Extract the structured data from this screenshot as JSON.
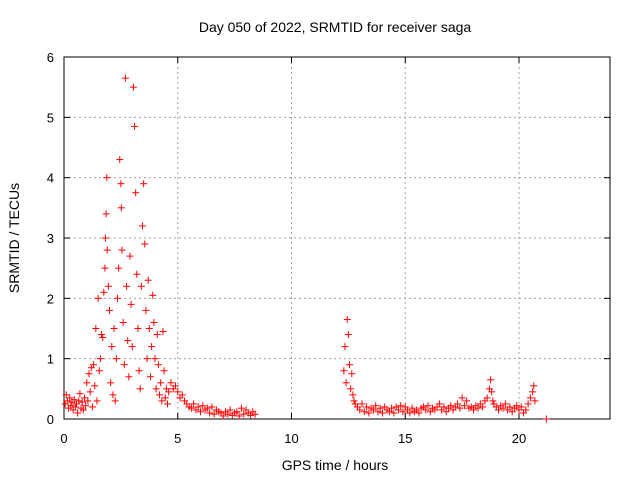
{
  "chart_data": {
    "type": "scatter",
    "title": "Day 050 of 2022, SRMTID for receiver saga",
    "xlabel": "GPS time / hours",
    "ylabel": "SRMTID / TECUs",
    "xlim": [
      0,
      24
    ],
    "ylim": [
      0,
      6
    ],
    "xticks": [
      0,
      5,
      10,
      15,
      20
    ],
    "yticks": [
      0,
      1,
      2,
      3,
      4,
      5,
      6
    ],
    "grid": true,
    "marker": "+",
    "color": "#ff0000",
    "series": [
      {
        "name": "SRMTID",
        "points": [
          [
            0.05,
            0.25
          ],
          [
            0.1,
            0.4
          ],
          [
            0.15,
            0.3
          ],
          [
            0.2,
            0.18
          ],
          [
            0.25,
            0.35
          ],
          [
            0.3,
            0.22
          ],
          [
            0.35,
            0.28
          ],
          [
            0.4,
            0.15
          ],
          [
            0.45,
            0.32
          ],
          [
            0.5,
            0.2
          ],
          [
            0.55,
            0.25
          ],
          [
            0.6,
            0.1
          ],
          [
            0.65,
            0.3
          ],
          [
            0.7,
            0.42
          ],
          [
            0.75,
            0.18
          ],
          [
            0.8,
            0.28
          ],
          [
            0.85,
            0.15
          ],
          [
            0.9,
            0.35
          ],
          [
            0.95,
            0.22
          ],
          [
            1.0,
            0.6
          ],
          [
            1.05,
            0.3
          ],
          [
            1.1,
            0.75
          ],
          [
            1.15,
            0.45
          ],
          [
            1.2,
            0.85
          ],
          [
            1.25,
            0.2
          ],
          [
            1.3,
            0.9
          ],
          [
            1.35,
            0.55
          ],
          [
            1.4,
            1.5
          ],
          [
            1.45,
            0.3
          ],
          [
            1.5,
            2.0
          ],
          [
            1.55,
            0.8
          ],
          [
            1.6,
            1.0
          ],
          [
            1.65,
            1.4
          ],
          [
            1.7,
            1.35
          ],
          [
            1.75,
            2.1
          ],
          [
            1.8,
            2.5
          ],
          [
            1.82,
            3.0
          ],
          [
            1.85,
            3.4
          ],
          [
            1.88,
            4.0
          ],
          [
            1.9,
            2.8
          ],
          [
            1.95,
            2.2
          ],
          [
            2.0,
            1.8
          ],
          [
            2.05,
            0.6
          ],
          [
            2.1,
            1.2
          ],
          [
            2.15,
            0.4
          ],
          [
            2.2,
            1.5
          ],
          [
            2.25,
            0.3
          ],
          [
            2.3,
            1.0
          ],
          [
            2.35,
            2.0
          ],
          [
            2.4,
            2.5
          ],
          [
            2.45,
            4.3
          ],
          [
            2.5,
            3.9
          ],
          [
            2.52,
            3.5
          ],
          [
            2.55,
            2.8
          ],
          [
            2.6,
            1.6
          ],
          [
            2.65,
            0.9
          ],
          [
            2.7,
            5.65
          ],
          [
            2.75,
            2.2
          ],
          [
            2.8,
            1.3
          ],
          [
            2.85,
            0.7
          ],
          [
            2.9,
            2.7
          ],
          [
            2.95,
            1.9
          ],
          [
            3.0,
            1.2
          ],
          [
            3.05,
            5.5
          ],
          [
            3.1,
            4.85
          ],
          [
            3.15,
            3.75
          ],
          [
            3.2,
            2.4
          ],
          [
            3.25,
            1.5
          ],
          [
            3.3,
            0.8
          ],
          [
            3.35,
            0.5
          ],
          [
            3.4,
            2.2
          ],
          [
            3.45,
            3.2
          ],
          [
            3.5,
            3.9
          ],
          [
            3.55,
            2.9
          ],
          [
            3.6,
            1.8
          ],
          [
            3.65,
            1.0
          ],
          [
            3.7,
            2.3
          ],
          [
            3.75,
            1.5
          ],
          [
            3.8,
            0.7
          ],
          [
            3.85,
            1.2
          ],
          [
            3.9,
            2.05
          ],
          [
            3.95,
            1.6
          ],
          [
            4.0,
            1.0
          ],
          [
            4.05,
            0.5
          ],
          [
            4.1,
            1.4
          ],
          [
            4.15,
            0.9
          ],
          [
            4.2,
            0.4
          ],
          [
            4.25,
            0.6
          ],
          [
            4.3,
            0.3
          ],
          [
            4.35,
            1.45
          ],
          [
            4.4,
            0.8
          ],
          [
            4.45,
            0.35
          ],
          [
            4.5,
            0.5
          ],
          [
            4.55,
            0.25
          ],
          [
            4.6,
            0.45
          ],
          [
            4.7,
            0.6
          ],
          [
            4.8,
            0.5
          ],
          [
            4.9,
            0.55
          ],
          [
            5.0,
            0.45
          ],
          [
            5.1,
            0.35
          ],
          [
            5.2,
            0.4
          ],
          [
            5.3,
            0.3
          ],
          [
            5.4,
            0.25
          ],
          [
            5.5,
            0.2
          ],
          [
            5.6,
            0.18
          ],
          [
            5.7,
            0.25
          ],
          [
            5.8,
            0.15
          ],
          [
            5.9,
            0.2
          ],
          [
            6.0,
            0.12
          ],
          [
            6.1,
            0.22
          ],
          [
            6.2,
            0.15
          ],
          [
            6.3,
            0.18
          ],
          [
            6.4,
            0.1
          ],
          [
            6.5,
            0.2
          ],
          [
            6.6,
            0.08
          ],
          [
            6.7,
            0.15
          ],
          [
            6.8,
            0.12
          ],
          [
            6.9,
            0.1
          ],
          [
            7.0,
            0.05
          ],
          [
            7.1,
            0.12
          ],
          [
            7.2,
            0.08
          ],
          [
            7.3,
            0.15
          ],
          [
            7.4,
            0.06
          ],
          [
            7.5,
            0.1
          ],
          [
            7.6,
            0.12
          ],
          [
            7.7,
            0.05
          ],
          [
            7.8,
            0.18
          ],
          [
            7.9,
            0.08
          ],
          [
            8.0,
            0.15
          ],
          [
            8.1,
            0.1
          ],
          [
            8.2,
            0.06
          ],
          [
            8.3,
            0.12
          ],
          [
            8.4,
            0.08
          ],
          [
            12.3,
            0.8
          ],
          [
            12.35,
            1.2
          ],
          [
            12.4,
            0.6
          ],
          [
            12.45,
            1.65
          ],
          [
            12.5,
            1.4
          ],
          [
            12.55,
            0.9
          ],
          [
            12.6,
            0.5
          ],
          [
            12.65,
            0.75
          ],
          [
            12.7,
            0.4
          ],
          [
            12.75,
            0.3
          ],
          [
            12.8,
            0.25
          ],
          [
            12.9,
            0.2
          ],
          [
            13.0,
            0.15
          ],
          [
            13.1,
            0.25
          ],
          [
            13.2,
            0.12
          ],
          [
            13.3,
            0.2
          ],
          [
            13.4,
            0.1
          ],
          [
            13.5,
            0.18
          ],
          [
            13.6,
            0.15
          ],
          [
            13.7,
            0.22
          ],
          [
            13.8,
            0.12
          ],
          [
            13.9,
            0.18
          ],
          [
            14.0,
            0.1
          ],
          [
            14.1,
            0.2
          ],
          [
            14.2,
            0.15
          ],
          [
            14.3,
            0.12
          ],
          [
            14.4,
            0.18
          ],
          [
            14.5,
            0.1
          ],
          [
            14.6,
            0.2
          ],
          [
            14.7,
            0.15
          ],
          [
            14.8,
            0.22
          ],
          [
            14.9,
            0.12
          ],
          [
            15.0,
            0.2
          ],
          [
            15.1,
            0.15
          ],
          [
            15.2,
            0.1
          ],
          [
            15.3,
            0.18
          ],
          [
            15.4,
            0.12
          ],
          [
            15.5,
            0.15
          ],
          [
            15.6,
            0.1
          ],
          [
            15.7,
            0.18
          ],
          [
            15.8,
            0.2
          ],
          [
            15.9,
            0.15
          ],
          [
            16.0,
            0.22
          ],
          [
            16.1,
            0.12
          ],
          [
            16.2,
            0.18
          ],
          [
            16.3,
            0.15
          ],
          [
            16.4,
            0.2
          ],
          [
            16.5,
            0.25
          ],
          [
            16.6,
            0.15
          ],
          [
            16.7,
            0.2
          ],
          [
            16.8,
            0.12
          ],
          [
            16.9,
            0.18
          ],
          [
            17.0,
            0.22
          ],
          [
            17.1,
            0.15
          ],
          [
            17.2,
            0.2
          ],
          [
            17.3,
            0.25
          ],
          [
            17.4,
            0.18
          ],
          [
            17.5,
            0.35
          ],
          [
            17.6,
            0.22
          ],
          [
            17.7,
            0.3
          ],
          [
            17.8,
            0.18
          ],
          [
            17.9,
            0.2
          ],
          [
            18.0,
            0.15
          ],
          [
            18.1,
            0.22
          ],
          [
            18.2,
            0.18
          ],
          [
            18.3,
            0.25
          ],
          [
            18.4,
            0.2
          ],
          [
            18.5,
            0.3
          ],
          [
            18.6,
            0.35
          ],
          [
            18.7,
            0.5
          ],
          [
            18.75,
            0.65
          ],
          [
            18.8,
            0.45
          ],
          [
            18.85,
            0.3
          ],
          [
            18.9,
            0.25
          ],
          [
            19.0,
            0.2
          ],
          [
            19.1,
            0.15
          ],
          [
            19.2,
            0.22
          ],
          [
            19.3,
            0.18
          ],
          [
            19.4,
            0.25
          ],
          [
            19.5,
            0.15
          ],
          [
            19.6,
            0.2
          ],
          [
            19.7,
            0.12
          ],
          [
            19.8,
            0.18
          ],
          [
            19.9,
            0.22
          ],
          [
            20.0,
            0.15
          ],
          [
            20.1,
            0.2
          ],
          [
            20.2,
            0.1
          ],
          [
            20.3,
            0.15
          ],
          [
            20.4,
            0.25
          ],
          [
            20.5,
            0.35
          ],
          [
            20.6,
            0.45
          ],
          [
            20.65,
            0.55
          ],
          [
            20.7,
            0.3
          ],
          [
            21.2,
            0.0
          ]
        ]
      }
    ]
  }
}
